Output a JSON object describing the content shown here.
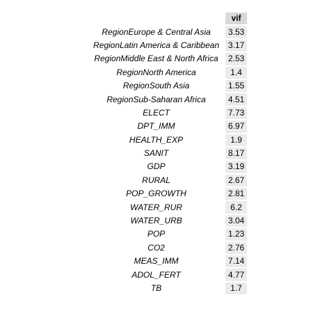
{
  "table": {
    "header": {
      "name": "",
      "value": "vif"
    },
    "rows": [
      {
        "name": "RegionEurope & Central Asia",
        "value": "3.53"
      },
      {
        "name": "RegionLatin America & Caribbean",
        "value": "3.17"
      },
      {
        "name": "RegionMiddle East & North Africa",
        "value": "2.53"
      },
      {
        "name": "RegionNorth America",
        "value": "1.4"
      },
      {
        "name": "RegionSouth Asia",
        "value": "1.55"
      },
      {
        "name": "RegionSub-Saharan Africa",
        "value": "4.51"
      },
      {
        "name": "ELECT",
        "value": "7.73"
      },
      {
        "name": "DPT_IMM",
        "value": "6.97"
      },
      {
        "name": "HEALTH_EXP",
        "value": "1.9"
      },
      {
        "name": "SANIT",
        "value": "8.17"
      },
      {
        "name": "GDP",
        "value": "3.19"
      },
      {
        "name": "RURAL",
        "value": "2.67"
      },
      {
        "name": "POP_GROWTH",
        "value": "2.81"
      },
      {
        "name": "WATER_RUR",
        "value": "6.2"
      },
      {
        "name": "WATER_URB",
        "value": "3.04"
      },
      {
        "name": "POP",
        "value": "1.23"
      },
      {
        "name": "CO2",
        "value": "2.76"
      },
      {
        "name": "MEAS_IMM",
        "value": "7.14"
      },
      {
        "name": "ADOL_FERT",
        "value": "4.77"
      },
      {
        "name": "TB",
        "value": "1.7"
      }
    ]
  }
}
